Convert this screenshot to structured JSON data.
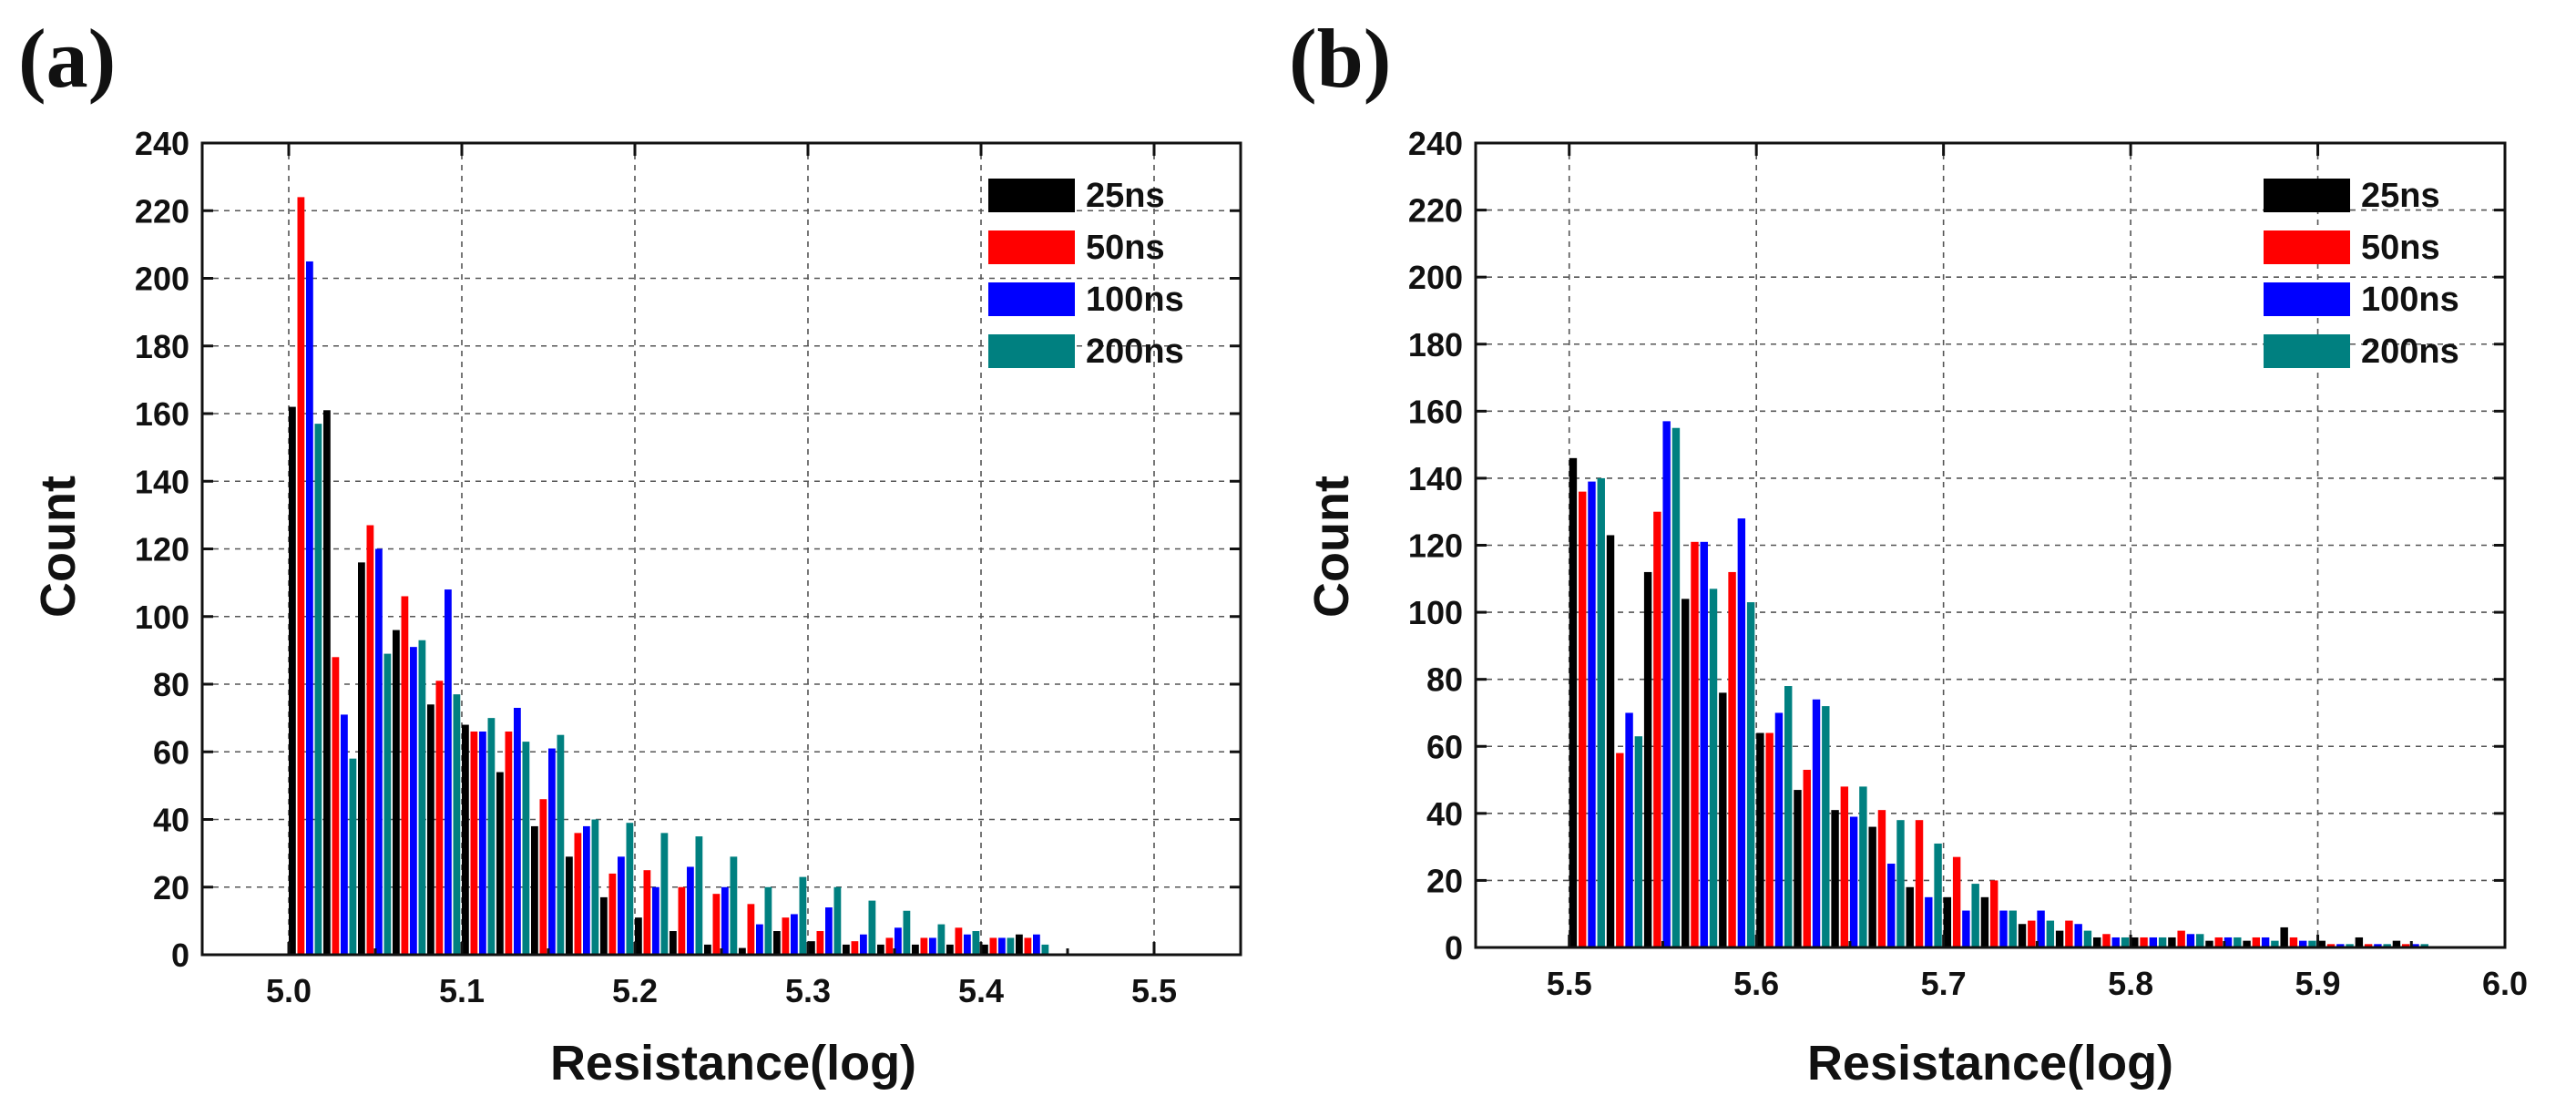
{
  "chart_data": [
    {
      "type": "bar",
      "panel_label": "(a)",
      "xlabel": "Resistance(log)",
      "ylabel": "Count",
      "xlim": [
        4.95,
        5.55
      ],
      "ylim": [
        0,
        240
      ],
      "xticks": [
        "5.0",
        "5.1",
        "5.2",
        "5.3",
        "5.4",
        "5.5"
      ],
      "yticks": [
        "0",
        "20",
        "40",
        "60",
        "80",
        "100",
        "120",
        "140",
        "160",
        "180",
        "200",
        "220",
        "240"
      ],
      "grid": true,
      "legend_position": "top-right",
      "bin_start": 5.0,
      "bin_width": 0.02,
      "series": [
        {
          "name": "25ns",
          "color": "#000000",
          "values": [
            162,
            161,
            116,
            96,
            74,
            68,
            54,
            38,
            29,
            17,
            11,
            7,
            3,
            2,
            7,
            4,
            3,
            3,
            3,
            3,
            3,
            6
          ]
        },
        {
          "name": "50ns",
          "color": "#ff0000",
          "values": [
            224,
            88,
            127,
            106,
            81,
            66,
            66,
            46,
            36,
            24,
            25,
            20,
            18,
            15,
            11,
            7,
            4,
            5,
            5,
            8,
            5,
            5
          ]
        },
        {
          "name": "100ns",
          "color": "#0000ff",
          "values": [
            205,
            71,
            120,
            91,
            108,
            66,
            73,
            61,
            38,
            29,
            20,
            26,
            20,
            9,
            12,
            14,
            6,
            8,
            5,
            6,
            5,
            6
          ]
        },
        {
          "name": "200ns",
          "color": "#008080",
          "values": [
            157,
            58,
            89,
            93,
            77,
            70,
            63,
            65,
            40,
            39,
            36,
            35,
            29,
            20,
            23,
            20,
            16,
            13,
            9,
            7,
            5,
            3
          ]
        }
      ]
    },
    {
      "type": "bar",
      "panel_label": "(b)",
      "xlabel": "Resistance(log)",
      "ylabel": "Count",
      "xlim": [
        5.45,
        6.0
      ],
      "ylim": [
        0,
        240
      ],
      "xticks": [
        "5.5",
        "5.6",
        "5.7",
        "5.8",
        "5.9",
        "6.0"
      ],
      "yticks": [
        "0",
        "20",
        "40",
        "60",
        "80",
        "100",
        "120",
        "140",
        "160",
        "180",
        "200",
        "220",
        "240"
      ],
      "grid": true,
      "legend_position": "top-right",
      "bin_start": 5.5,
      "bin_width": 0.02,
      "series": [
        {
          "name": "25ns",
          "color": "#000000",
          "values": [
            146,
            123,
            112,
            104,
            76,
            64,
            47,
            41,
            36,
            18,
            15,
            15,
            7,
            5,
            3,
            3,
            3,
            2,
            2,
            6,
            2,
            3,
            2
          ]
        },
        {
          "name": "50ns",
          "color": "#ff0000",
          "values": [
            136,
            58,
            130,
            121,
            112,
            64,
            53,
            48,
            41,
            38,
            27,
            20,
            8,
            8,
            4,
            3,
            5,
            3,
            3,
            3,
            1,
            1,
            1
          ]
        },
        {
          "name": "100ns",
          "color": "#0000ff",
          "values": [
            139,
            70,
            157,
            121,
            128,
            70,
            74,
            39,
            25,
            15,
            11,
            11,
            11,
            7,
            3,
            3,
            4,
            3,
            3,
            2,
            1,
            1,
            1
          ]
        },
        {
          "name": "200ns",
          "color": "#008080",
          "values": [
            140,
            63,
            155,
            107,
            103,
            78,
            72,
            48,
            38,
            31,
            19,
            11,
            8,
            5,
            3,
            3,
            4,
            3,
            2,
            2,
            1,
            1,
            1
          ]
        }
      ]
    }
  ]
}
